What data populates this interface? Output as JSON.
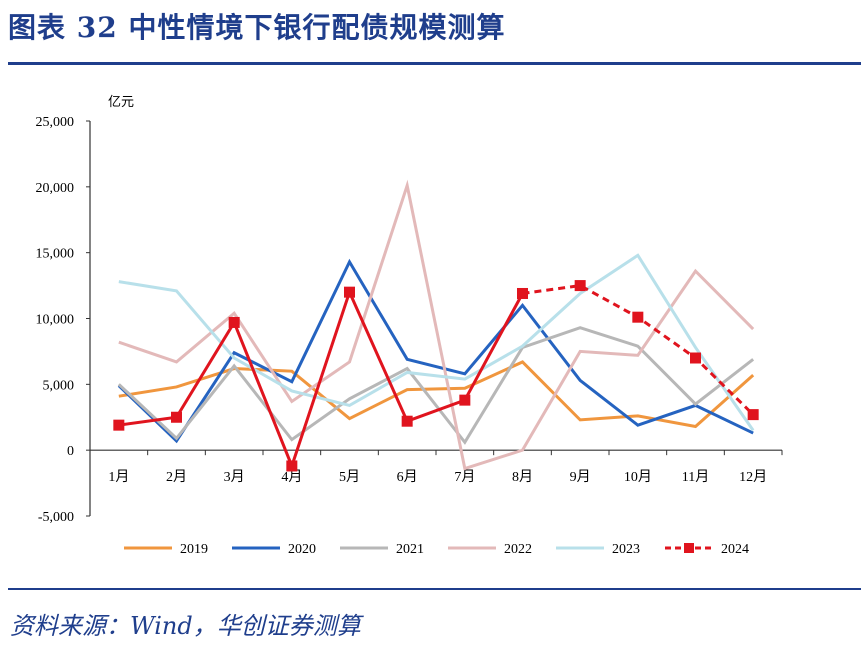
{
  "header": {
    "title": "图表 32    中性情境下银行配债规模测算"
  },
  "footer": {
    "source": "资料来源：Wind，华创证券测算"
  },
  "chart_data": {
    "type": "line",
    "title": "",
    "ylabel": "亿元",
    "ylim": [
      -5000,
      25000
    ],
    "yticks": [
      -5000,
      0,
      5000,
      10000,
      15000,
      20000,
      25000
    ],
    "ytick_labels": [
      "-5,000",
      "0",
      "5,000",
      "10,000",
      "15,000",
      "20,000",
      "25,000"
    ],
    "categories": [
      "1月",
      "2月",
      "3月",
      "4月",
      "5月",
      "6月",
      "7月",
      "8月",
      "9月",
      "10月",
      "11月",
      "12月"
    ],
    "grid": false,
    "legend": "bottom",
    "series": [
      {
        "name": "2019",
        "color": "#f0963e",
        "values": [
          4100,
          4800,
          6200,
          6000,
          2400,
          4600,
          4700,
          6700,
          2300,
          2600,
          1800,
          5700
        ]
      },
      {
        "name": "2020",
        "color": "#2563c0",
        "values": [
          4900,
          700,
          7400,
          5200,
          14300,
          6900,
          5800,
          11000,
          5300,
          1900,
          3400,
          1300
        ]
      },
      {
        "name": "2021",
        "color": "#b7b7b7",
        "values": [
          5000,
          900,
          6400,
          800,
          3900,
          6200,
          600,
          7800,
          9300,
          7900,
          3500,
          6900
        ]
      },
      {
        "name": "2022",
        "color": "#e3b9b9",
        "values": [
          8200,
          6700,
          10400,
          3700,
          6700,
          20100,
          -1400,
          0,
          7500,
          7200,
          13600,
          9200
        ]
      },
      {
        "name": "2023",
        "color": "#b8e0ea",
        "values": [
          12800,
          12100,
          7000,
          4500,
          3400,
          5900,
          5400,
          7900,
          11900,
          14800,
          7800,
          1500
        ]
      },
      {
        "name": "2024",
        "color": "#e0141e",
        "values": [
          1900,
          2500,
          9700,
          -1200,
          12000,
          2200,
          3800,
          11900,
          12500,
          10100,
          7000,
          2700
        ],
        "solid_until_index": 7,
        "markers": "square"
      }
    ]
  }
}
